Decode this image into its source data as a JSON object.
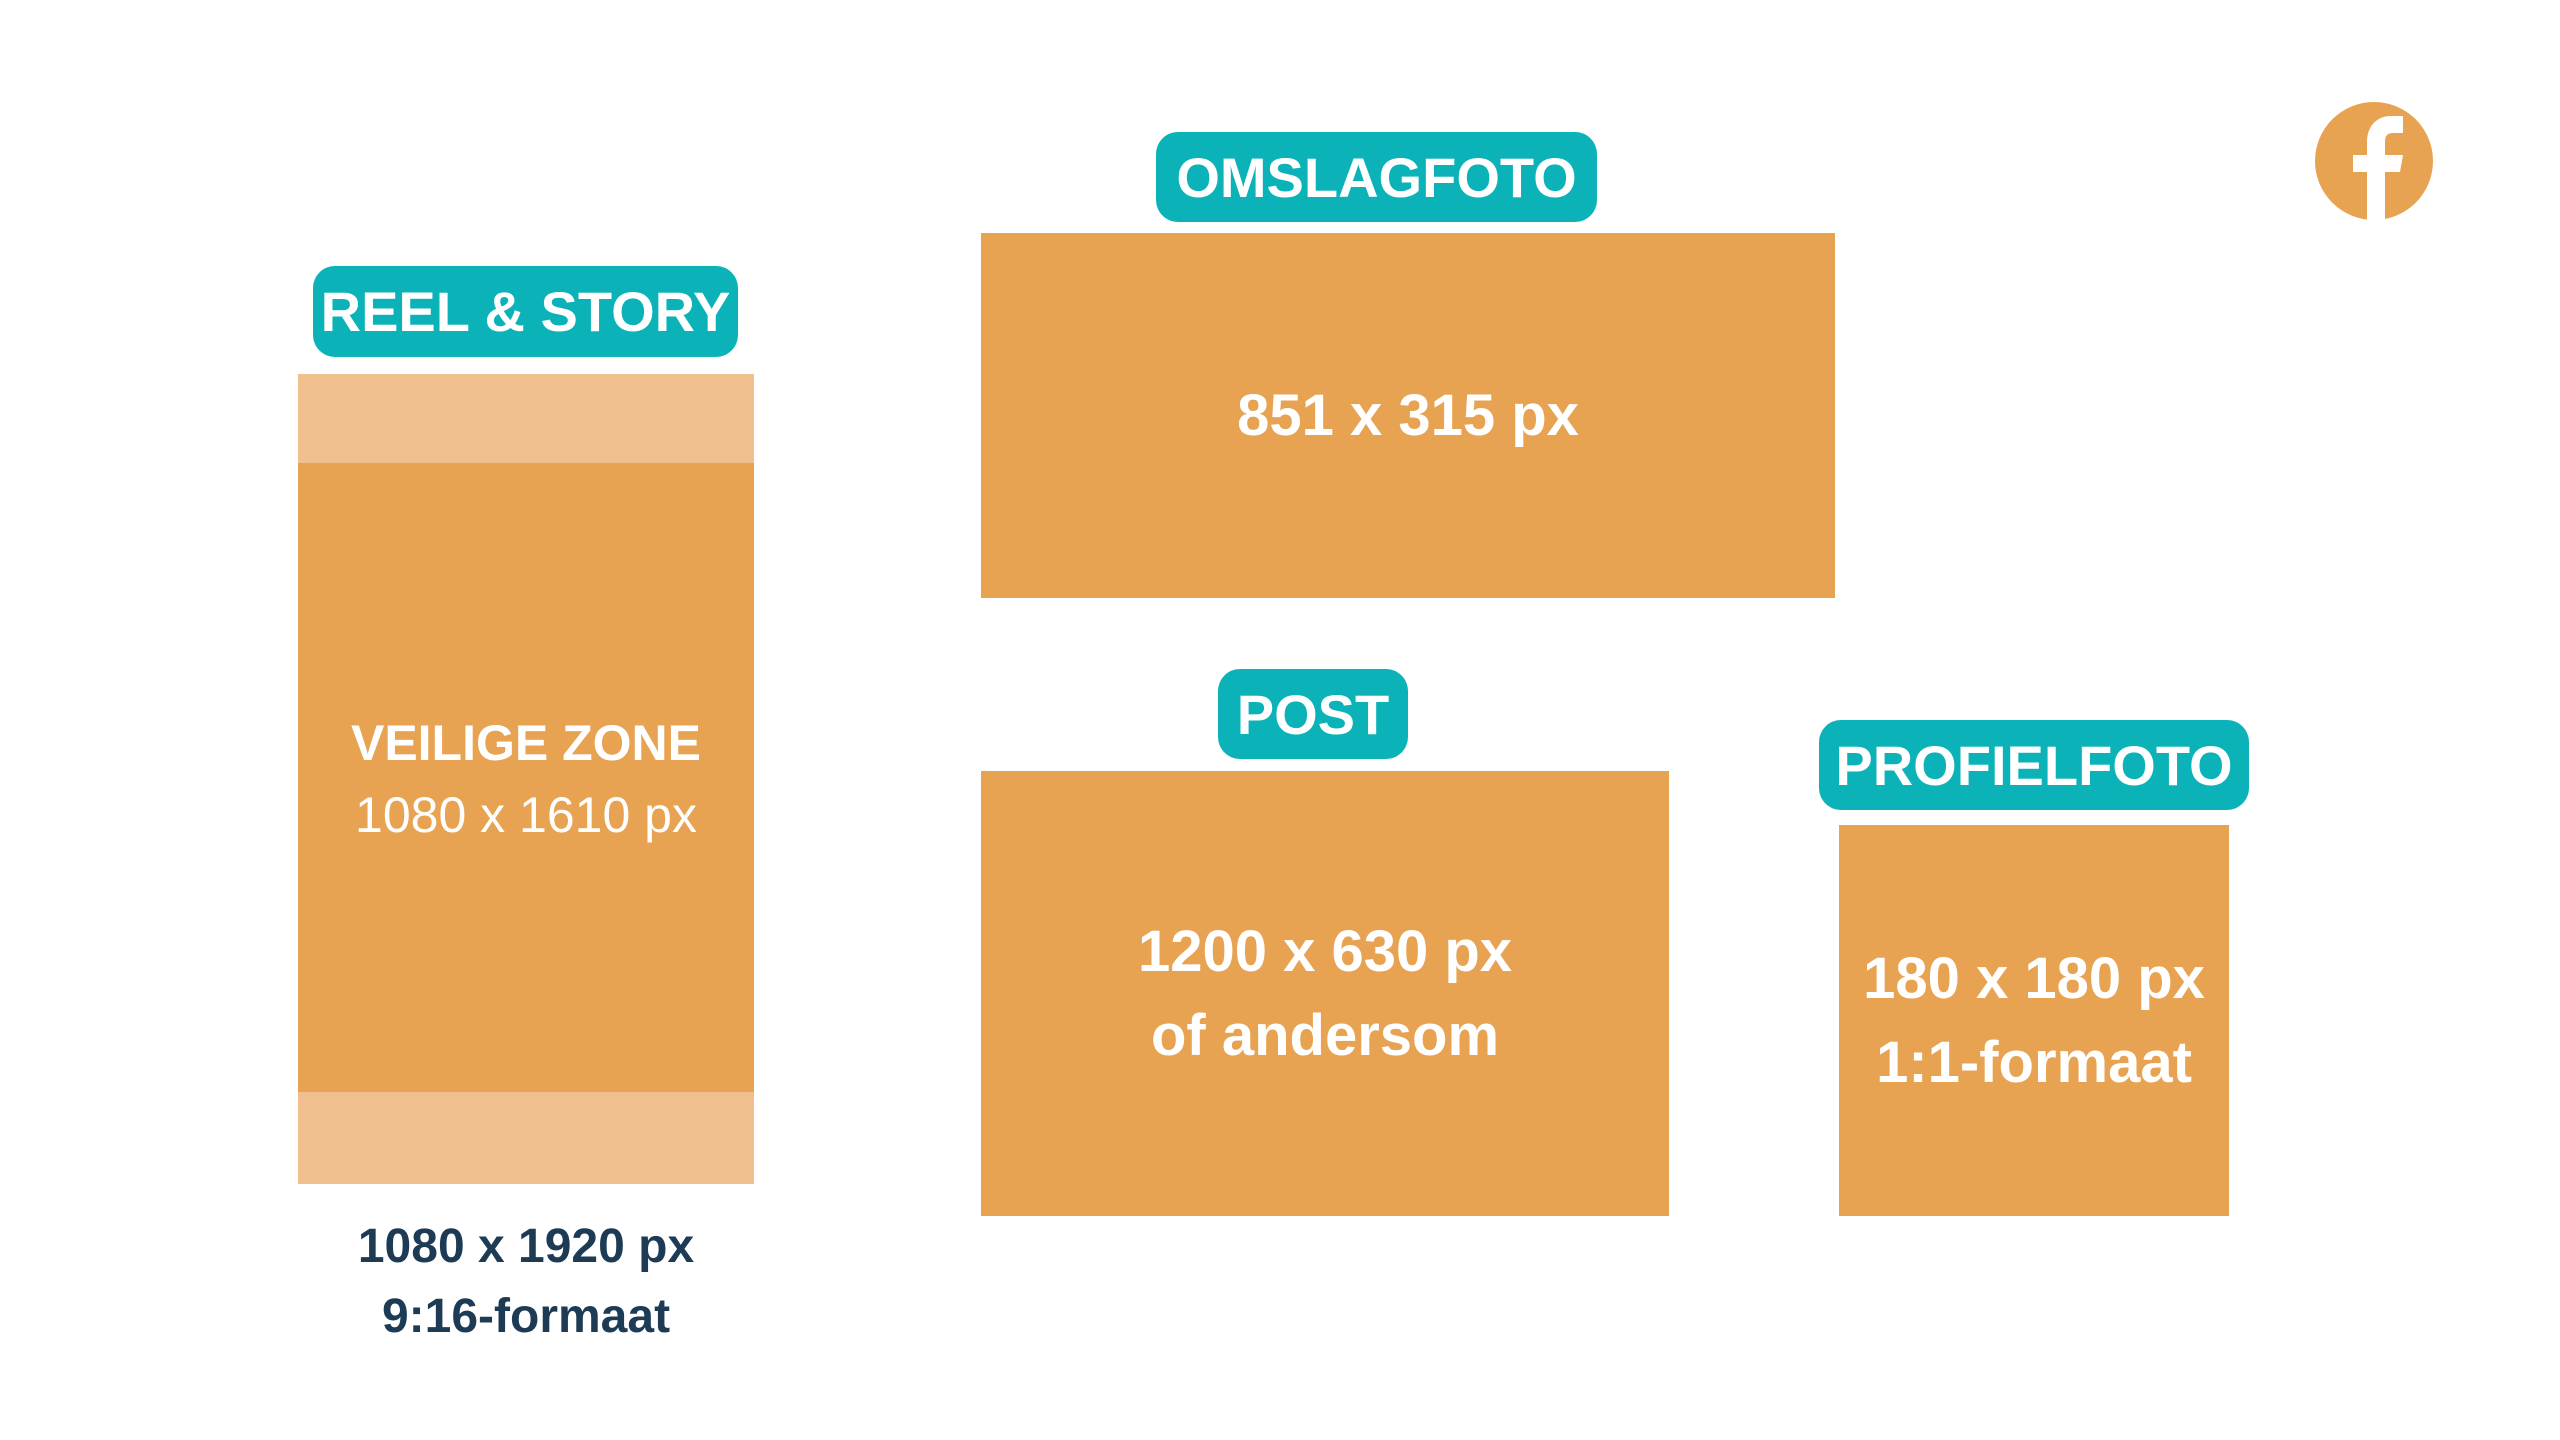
{
  "colors": {
    "label_bg": "#0bb3b9",
    "box": "#e8a352",
    "unsafe_band": "#efc08e",
    "caption": "#1d3b55"
  },
  "logo": {
    "icon": "facebook-icon"
  },
  "reel_story": {
    "label": "REEL & STORY",
    "safe_zone_title": "VEILIGE ZONE",
    "safe_zone_size": "1080 x 1610 px",
    "size": "1080 x 1920 px",
    "ratio": "9:16-formaat"
  },
  "cover": {
    "label": "OMSLAGFOTO",
    "size": "851 x 315 px"
  },
  "post": {
    "label": "POST",
    "size": "1200 x 630 px",
    "note": "of andersom"
  },
  "profile": {
    "label": "PROFIELFOTO",
    "size": "180 x 180 px",
    "ratio": "1:1-formaat"
  }
}
